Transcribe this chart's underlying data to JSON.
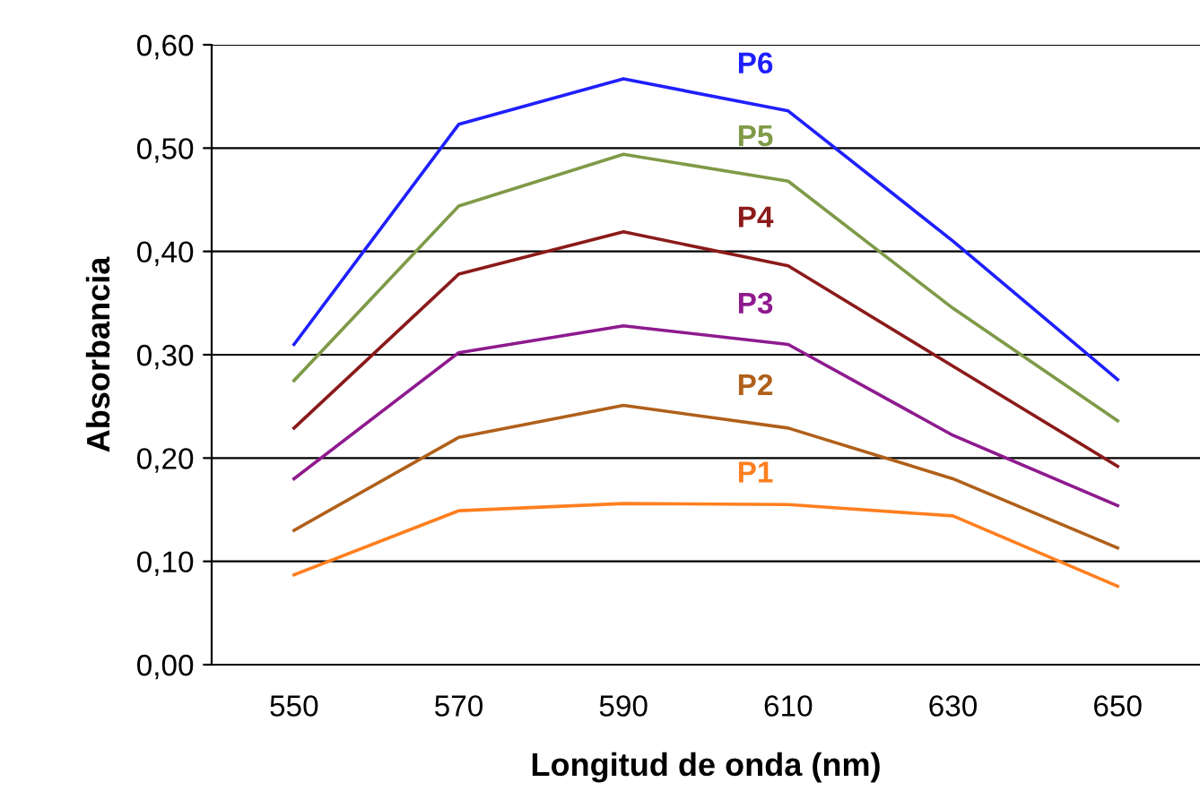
{
  "chart_data": {
    "type": "line",
    "xlabel": "Longitud de onda (nm)",
    "ylabel": "Absorbancia",
    "categories": [
      "550",
      "570",
      "590",
      "610",
      "630",
      "650"
    ],
    "series": [
      {
        "name": "P1",
        "color": "#ff7f1f",
        "values": [
          0.087,
          0.149,
          0.156,
          0.155,
          0.144,
          0.076
        ]
      },
      {
        "name": "P2",
        "color": "#b0601a",
        "values": [
          0.13,
          0.22,
          0.251,
          0.229,
          0.18,
          0.113
        ]
      },
      {
        "name": "P3",
        "color": "#8e1a8e",
        "values": [
          0.18,
          0.302,
          0.328,
          0.31,
          0.222,
          0.154
        ]
      },
      {
        "name": "P4",
        "color": "#8b1a1a",
        "values": [
          0.229,
          0.378,
          0.419,
          0.386,
          0.289,
          0.192
        ]
      },
      {
        "name": "P5",
        "color": "#7f9a48",
        "values": [
          0.275,
          0.444,
          0.494,
          0.468,
          0.345,
          0.236
        ]
      },
      {
        "name": "P6",
        "color": "#1f1fff",
        "values": [
          0.31,
          0.523,
          0.567,
          0.536,
          0.41,
          0.276
        ]
      }
    ],
    "ylim": [
      0,
      0.6
    ],
    "yticks": [
      {
        "value": 0,
        "label": "0,00"
      },
      {
        "value": 0.1,
        "label": "0,10"
      },
      {
        "value": 0.2,
        "label": "0,20"
      },
      {
        "value": 0.3,
        "label": "0,30"
      },
      {
        "value": 0.4,
        "label": "0,40"
      },
      {
        "value": 0.5,
        "label": "0,50"
      },
      {
        "value": 0.6,
        "label": "0,60"
      }
    ],
    "grid": "y",
    "legend": false,
    "marker": "none",
    "line_style": "solid"
  }
}
